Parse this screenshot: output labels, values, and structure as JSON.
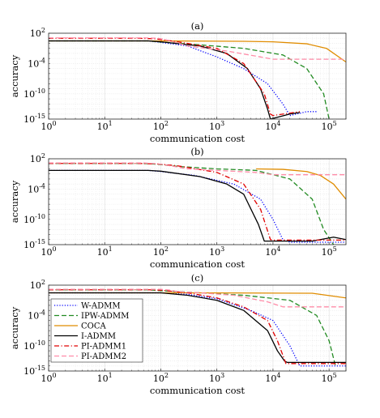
{
  "chart_data": [
    {
      "type": "line",
      "title": "(a)",
      "xlabel": "communication cost",
      "ylabel": "accuracy",
      "xscale": "log",
      "yscale": "log",
      "xlim": [
        1,
        200000
      ],
      "ylim": [
        1e-15,
        100
      ],
      "x_ticks": [
        "10^0",
        "10^1",
        "10^2",
        "10^3",
        "10^4",
        "10^5"
      ],
      "y_ticks": [
        "10^2",
        "10^-4",
        "10^-10",
        "10^-15"
      ],
      "grid": true,
      "legend": "none",
      "series": [
        {
          "name": "W-ADMM",
          "color": "#0000ff",
          "dash": "dotted",
          "points": [
            [
              1,
              3
            ],
            [
              60,
              3
            ],
            [
              100,
              1.5
            ],
            [
              300,
              0.3
            ],
            [
              1000,
              0.002
            ],
            [
              3000,
              1e-05
            ],
            [
              8000,
              1e-08
            ],
            [
              15000,
              1e-12
            ],
            [
              20000,
              5e-15
            ],
            [
              40000,
              3e-14
            ],
            [
              60000,
              3e-14
            ]
          ]
        },
        {
          "name": "IPW-ADMM",
          "color": "#228b22",
          "dash": "dashed",
          "points": [
            [
              1,
              3
            ],
            [
              60,
              3
            ],
            [
              100,
              1.8
            ],
            [
              500,
              0.5
            ],
            [
              3000,
              0.1
            ],
            [
              15000,
              0.005
            ],
            [
              40000,
              1e-05
            ],
            [
              80000,
              1e-10
            ],
            [
              100000,
              1e-15
            ]
          ]
        },
        {
          "name": "COCA",
          "color": "#e08c00",
          "dash": "solid",
          "points": [
            [
              1,
              3
            ],
            [
              100,
              3
            ],
            [
              3000,
              2.5
            ],
            [
              10000,
              2
            ],
            [
              40000,
              0.8
            ],
            [
              90000,
              0.1
            ],
            [
              200000,
              0.0002
            ]
          ]
        },
        {
          "name": "I-ADMM",
          "color": "#000000",
          "dash": "solid",
          "points": [
            [
              1,
              3
            ],
            [
              60,
              3
            ],
            [
              100,
              2
            ],
            [
              500,
              0.3
            ],
            [
              1500,
              0.01
            ],
            [
              3500,
              1e-05
            ],
            [
              6000,
              1e-09
            ],
            [
              8000,
              1e-13
            ],
            [
              9000,
              1e-15
            ],
            [
              20000,
              1e-14
            ],
            [
              30000,
              2e-14
            ]
          ]
        },
        {
          "name": "PI-ADMM1",
          "color": "#e00000",
          "dash": "dashdot",
          "points": [
            [
              1,
              10
            ],
            [
              40,
              10
            ],
            [
              80,
              8
            ],
            [
              200,
              2
            ],
            [
              1000,
              0.1
            ],
            [
              3000,
              0.0001
            ],
            [
              7000,
              1e-10
            ],
            [
              9000,
              1e-14
            ],
            [
              10000,
              5e-15
            ],
            [
              30000,
              3e-14
            ]
          ]
        },
        {
          "name": "PI-ADMM2",
          "color": "#ff8ca8",
          "dash": "dashed",
          "points": [
            [
              1,
              12
            ],
            [
              50,
              12
            ],
            [
              90,
              10
            ],
            [
              150,
              3
            ],
            [
              300,
              0.3
            ],
            [
              1500,
              0.03
            ],
            [
              6000,
              0.002
            ],
            [
              10000,
              0.0007
            ],
            [
              200000,
              0.0007
            ]
          ]
        }
      ]
    },
    {
      "type": "line",
      "title": "(b)",
      "xlabel": "communication cost",
      "ylabel": "accuracy",
      "xscale": "log",
      "yscale": "log",
      "xlim": [
        1,
        200000
      ],
      "ylim": [
        1e-15,
        100
      ],
      "x_ticks": [
        "10^0",
        "10^1",
        "10^2",
        "10^3",
        "10^4",
        "10^5"
      ],
      "y_ticks": [
        "10^2",
        "10^-4",
        "10^-10",
        "10^-15"
      ],
      "grid": true,
      "legend": "none",
      "series": [
        {
          "name": "W-ADMM",
          "color": "#0000ff",
          "dash": "dotted",
          "points": [
            [
              1,
              0.5
            ],
            [
              60,
              0.5
            ],
            [
              100,
              0.3
            ],
            [
              400,
              0.05
            ],
            [
              2000,
              0.001
            ],
            [
              6000,
              1e-06
            ],
            [
              10000,
              1e-10
            ],
            [
              15000,
              1e-14
            ],
            [
              20000,
              3e-15
            ],
            [
              200000,
              3e-15
            ]
          ]
        },
        {
          "name": "IPW-ADMM",
          "color": "#228b22",
          "dash": "dashed",
          "points": [
            [
              1,
              12
            ],
            [
              50,
              12
            ],
            [
              90,
              8
            ],
            [
              200,
              3
            ],
            [
              1000,
              1
            ],
            [
              5000,
              0.5
            ],
            [
              20000,
              0.01
            ],
            [
              50000,
              1e-06
            ],
            [
              80000,
              1e-12
            ],
            [
              120000,
              1e-15
            ]
          ]
        },
        {
          "name": "COCA",
          "color": "#e08c00",
          "dash": "solid",
          "points": [
            [
              5000,
              1
            ],
            [
              15000,
              0.8
            ],
            [
              40000,
              0.3
            ],
            [
              70000,
              0.05
            ],
            [
              120000,
              0.001
            ],
            [
              200000,
              1e-06
            ]
          ]
        },
        {
          "name": "I-ADMM",
          "color": "#000000",
          "dash": "solid",
          "points": [
            [
              1,
              0.5
            ],
            [
              60,
              0.5
            ],
            [
              100,
              0.35
            ],
            [
              500,
              0.03
            ],
            [
              1500,
              0.001
            ],
            [
              3000,
              1e-05
            ],
            [
              5500,
              1e-11
            ],
            [
              7000,
              5e-15
            ],
            [
              50000,
              5e-15
            ],
            [
              120000,
              3e-14
            ],
            [
              200000,
              1e-14
            ]
          ]
        },
        {
          "name": "PI-ADMM1",
          "color": "#e00000",
          "dash": "dashdot",
          "points": [
            [
              1,
              12
            ],
            [
              40,
              12
            ],
            [
              90,
              9
            ],
            [
              200,
              4
            ],
            [
              1000,
              0.2
            ],
            [
              3000,
              0.001
            ],
            [
              6000,
              1e-08
            ],
            [
              9000,
              1e-14
            ],
            [
              10000,
              8e-15
            ],
            [
              200000,
              8e-15
            ]
          ]
        },
        {
          "name": "PI-ADMM2",
          "color": "#ff8ca8",
          "dash": "dashed",
          "points": [
            [
              1,
              15
            ],
            [
              50,
              15
            ],
            [
              90,
              10
            ],
            [
              150,
              4
            ],
            [
              300,
              1
            ],
            [
              1000,
              0.5
            ],
            [
              5000,
              0.2
            ],
            [
              10000,
              0.07
            ],
            [
              200000,
              0.07
            ]
          ]
        }
      ]
    },
    {
      "type": "line",
      "title": "(c)",
      "xlabel": "communication cost",
      "ylabel": "accuracy",
      "xscale": "log",
      "yscale": "log",
      "xlim": [
        1,
        200000
      ],
      "ylim": [
        1e-15,
        100
      ],
      "x_ticks": [
        "10^0",
        "10^1",
        "10^2",
        "10^3",
        "10^4",
        "10^5"
      ],
      "y_ticks": [
        "10^2",
        "10^-4",
        "10^-10",
        "10^-15"
      ],
      "grid": true,
      "legend": "top-left",
      "series": [
        {
          "name": "W-ADMM",
          "color": "#0000ff",
          "dash": "dotted",
          "points": [
            [
              1,
              3
            ],
            [
              100,
              3
            ],
            [
              300,
              1.5
            ],
            [
              1000,
              0.2
            ],
            [
              4000,
              0.001
            ],
            [
              10000,
              1e-05
            ],
            [
              20000,
              1e-10
            ],
            [
              30000,
              1e-14
            ],
            [
              200000,
              1e-14
            ]
          ]
        },
        {
          "name": "IPW-ADMM",
          "color": "#228b22",
          "dash": "dashed",
          "points": [
            [
              1,
              12
            ],
            [
              60,
              12
            ],
            [
              100,
              8
            ],
            [
              500,
              3
            ],
            [
              3000,
              1
            ],
            [
              20000,
              0.1
            ],
            [
              60000,
              0.0001
            ],
            [
              100000,
              1e-09
            ],
            [
              130000,
              1e-14
            ]
          ]
        },
        {
          "name": "COCA",
          "color": "#e08c00",
          "dash": "solid",
          "points": [
            [
              1,
              3
            ],
            [
              500,
              3
            ],
            [
              50000,
              2.5
            ],
            [
              200000,
              0.3
            ]
          ]
        },
        {
          "name": "I-ADMM",
          "color": "#000000",
          "dash": "solid",
          "points": [
            [
              1,
              3
            ],
            [
              100,
              3
            ],
            [
              300,
              1
            ],
            [
              1000,
              0.1
            ],
            [
              3000,
              0.001
            ],
            [
              8000,
              1e-07
            ],
            [
              12000,
              1e-11
            ],
            [
              16000,
              1e-13
            ],
            [
              18000,
              5e-14
            ],
            [
              200000,
              5e-14
            ]
          ]
        },
        {
          "name": "PI-ADMM1",
          "color": "#e00000",
          "dash": "dashdot",
          "points": [
            [
              1,
              12
            ],
            [
              60,
              12
            ],
            [
              100,
              10
            ],
            [
              300,
              3
            ],
            [
              1000,
              0.3
            ],
            [
              3000,
              0.005
            ],
            [
              8000,
              1e-05
            ],
            [
              12000,
              1e-09
            ],
            [
              17000,
              3e-14
            ],
            [
              200000,
              3e-14
            ]
          ]
        },
        {
          "name": "PI-ADMM2",
          "color": "#ff8ca8",
          "dash": "dashed",
          "points": [
            [
              1,
              15
            ],
            [
              100,
              15
            ],
            [
              150,
              10
            ],
            [
              200,
              5
            ],
            [
              500,
              3
            ],
            [
              2000,
              1
            ],
            [
              8000,
              0.05
            ],
            [
              15000,
              0.005
            ],
            [
              200000,
              0.005
            ]
          ]
        }
      ]
    }
  ]
}
